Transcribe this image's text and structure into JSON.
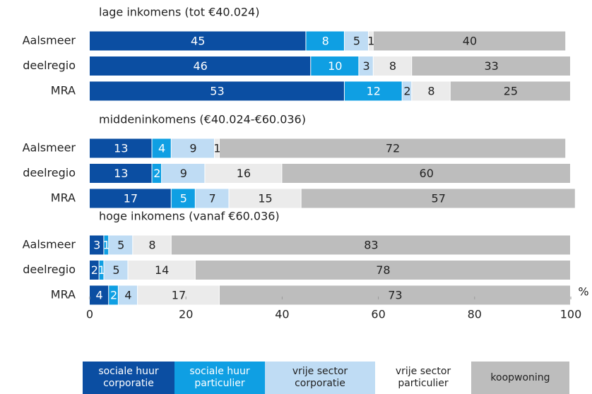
{
  "chart_data": [
    {
      "type": "bar",
      "orientation": "horizontal",
      "stacked": true,
      "title": "lage inkomens (tot €40.024)",
      "categories": [
        "Aalsmeer",
        "deelregio",
        "MRA"
      ],
      "series": [
        {
          "name": "sociale huur corporatie",
          "color": "#0b4ea2",
          "values": [
            45,
            46,
            53
          ]
        },
        {
          "name": "sociale huur particulier",
          "color": "#0f9fe3",
          "values": [
            8,
            10,
            12
          ]
        },
        {
          "name": "vrije sector corporatie",
          "color": "#bfdcf4",
          "values": [
            5,
            3,
            2
          ]
        },
        {
          "name": "vrije sector particulier",
          "color": "#ebebeb",
          "values": [
            1,
            8,
            8
          ]
        },
        {
          "name": "koopwoning",
          "color": "#bdbdbd",
          "values": [
            40,
            33,
            25
          ]
        }
      ]
    },
    {
      "type": "bar",
      "orientation": "horizontal",
      "stacked": true,
      "title": "middeninkomens (€40.024-€60.036)",
      "categories": [
        "Aalsmeer",
        "deelregio",
        "MRA"
      ],
      "series": [
        {
          "name": "sociale huur corporatie",
          "color": "#0b4ea2",
          "values": [
            13,
            13,
            17
          ]
        },
        {
          "name": "sociale huur particulier",
          "color": "#0f9fe3",
          "values": [
            4,
            2,
            5
          ]
        },
        {
          "name": "vrije sector corporatie",
          "color": "#bfdcf4",
          "values": [
            9,
            9,
            7
          ]
        },
        {
          "name": "vrije sector particulier",
          "color": "#ebebeb",
          "values": [
            1,
            16,
            15
          ]
        },
        {
          "name": "koopwoning",
          "color": "#bdbdbd",
          "values": [
            72,
            60,
            57
          ]
        }
      ]
    },
    {
      "type": "bar",
      "orientation": "horizontal",
      "stacked": true,
      "title": "hoge inkomens (vanaf €60.036)",
      "categories": [
        "Aalsmeer",
        "deelregio",
        "MRA"
      ],
      "series": [
        {
          "name": "sociale huur corporatie",
          "color": "#0b4ea2",
          "values": [
            3,
            2,
            4
          ]
        },
        {
          "name": "sociale huur particulier",
          "color": "#0f9fe3",
          "values": [
            1,
            1,
            2
          ]
        },
        {
          "name": "vrije sector corporatie",
          "color": "#bfdcf4",
          "values": [
            5,
            5,
            4
          ]
        },
        {
          "name": "vrije sector particulier",
          "color": "#ebebeb",
          "values": [
            8,
            14,
            17
          ]
        },
        {
          "name": "koopwoning",
          "color": "#bdbdbd",
          "values": [
            83,
            78,
            73
          ]
        }
      ],
      "x_unit": "%",
      "xlim": [
        0,
        100
      ],
      "xticks": [
        0,
        20,
        40,
        60,
        80,
        100
      ]
    }
  ]
}
